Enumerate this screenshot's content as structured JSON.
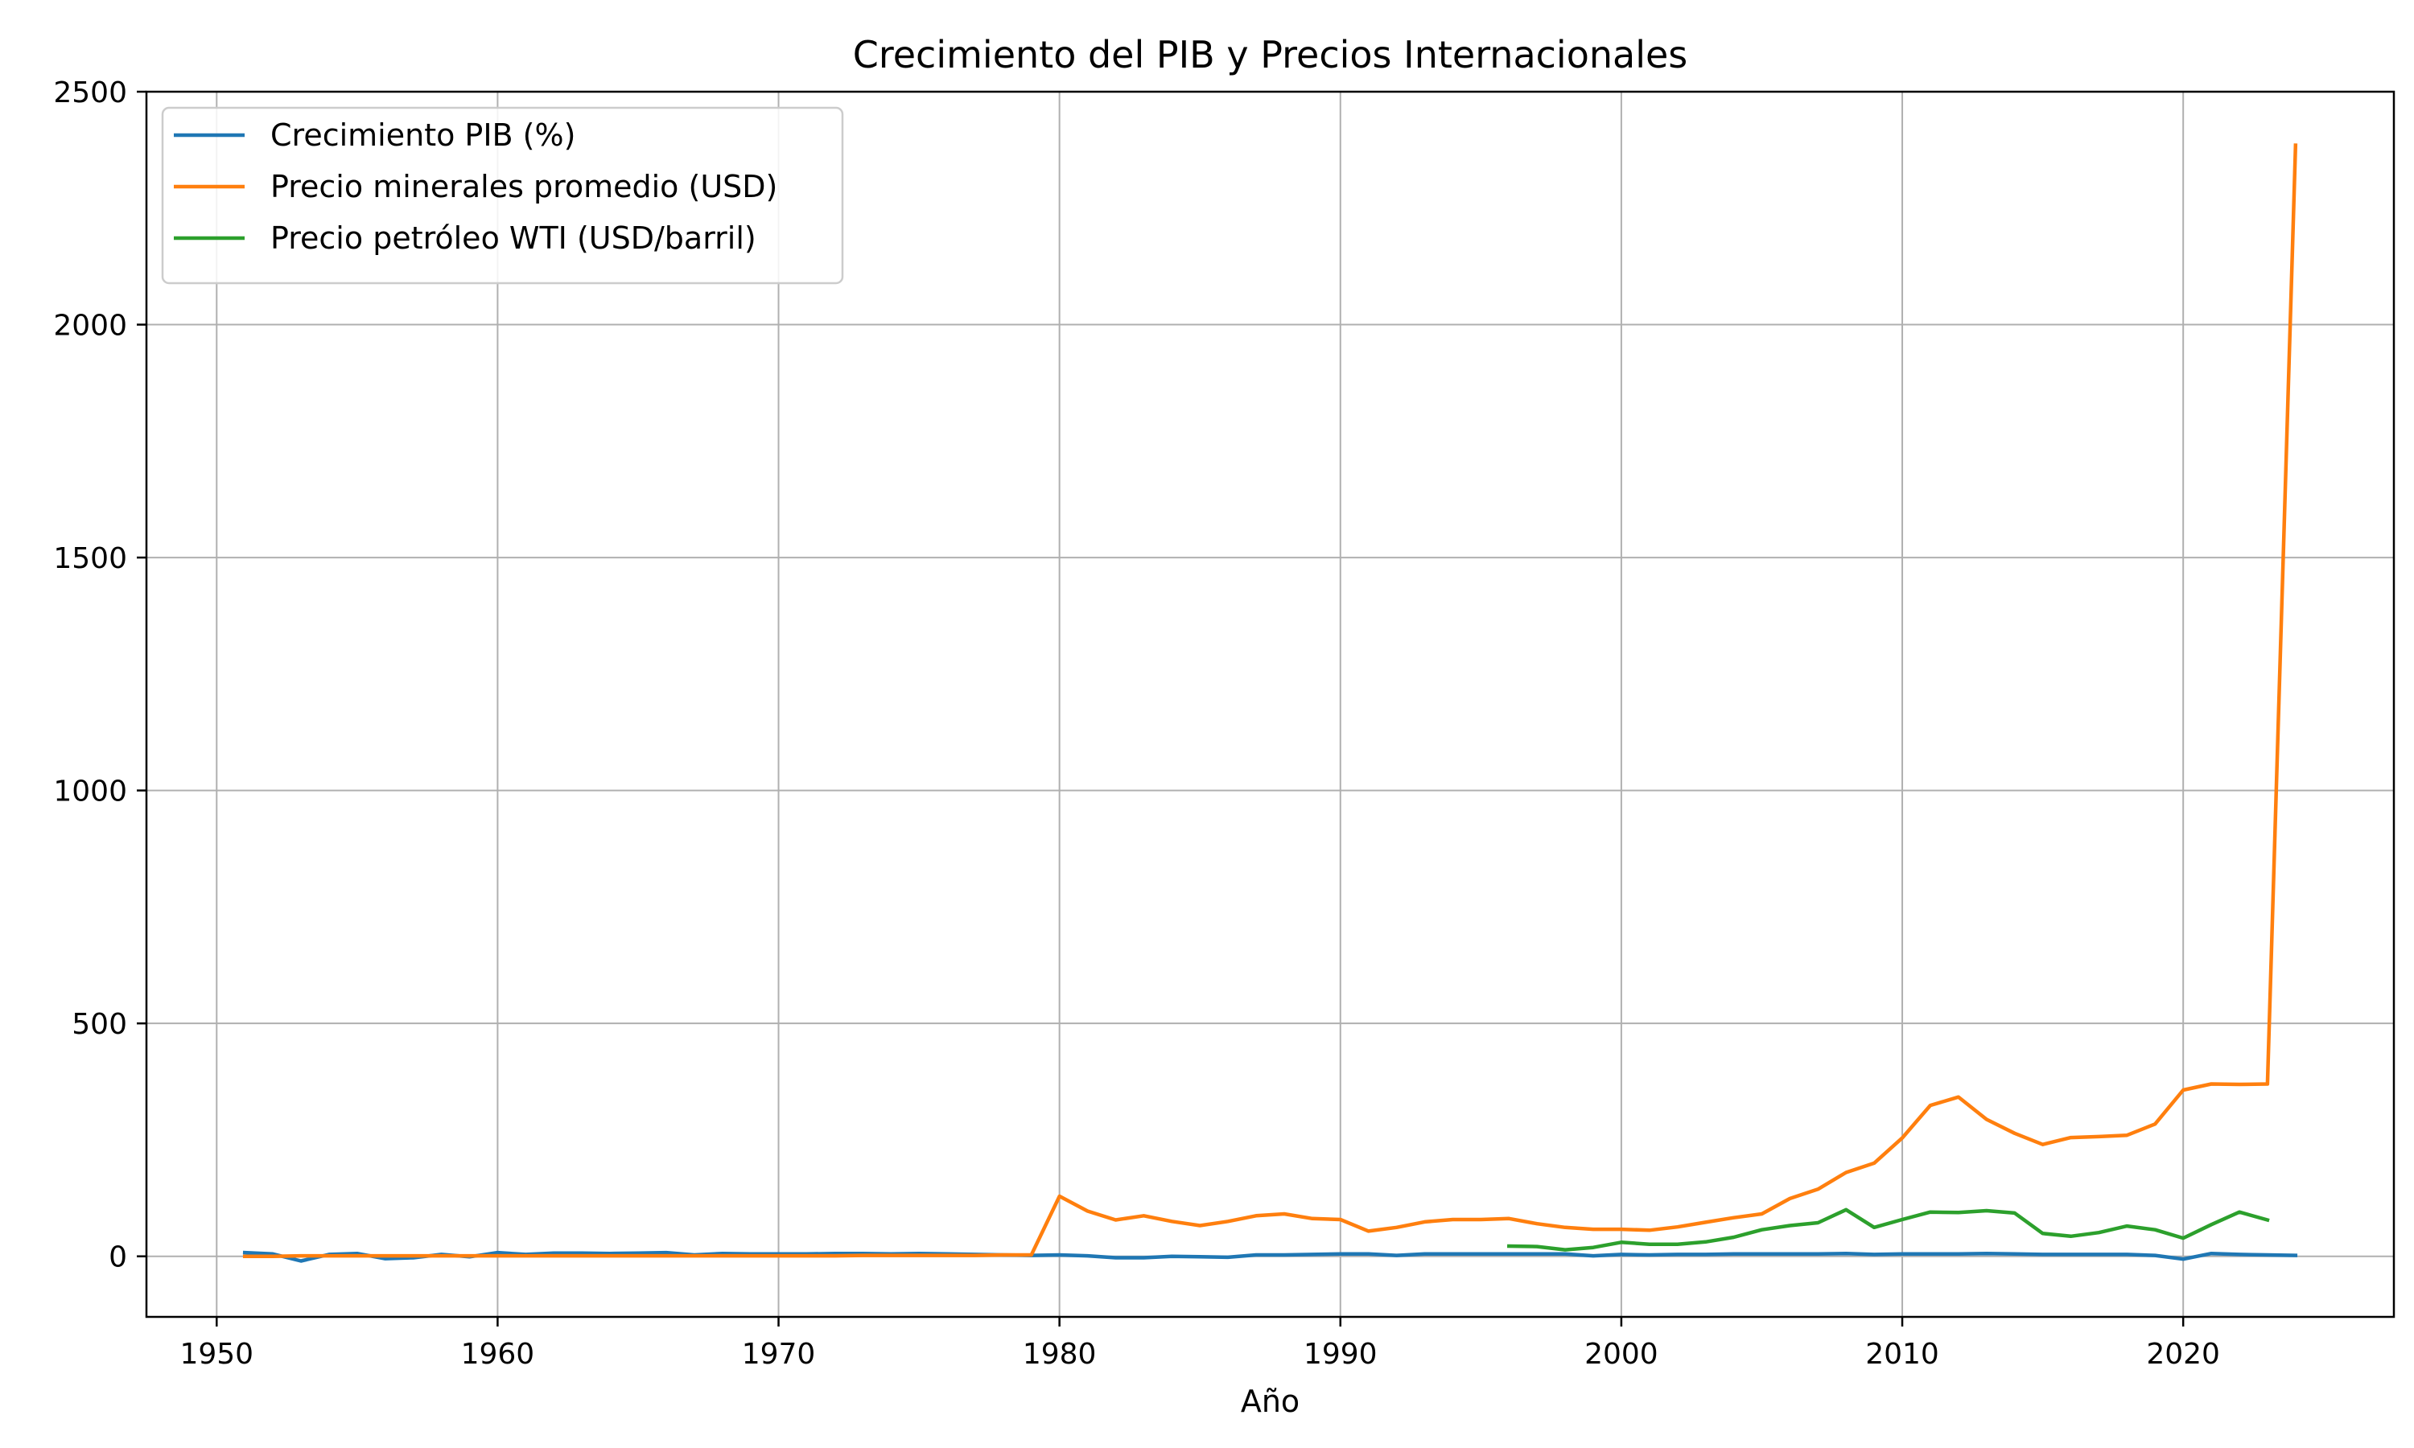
{
  "chart_data": {
    "type": "line",
    "title": "Crecimiento del PIB y Precios Internacionales",
    "xlabel": "Año",
    "ylabel": "",
    "xlim": [
      1947.5,
      2027.5
    ],
    "ylim": [
      -130,
      2500
    ],
    "xticks": [
      1950,
      1960,
      1970,
      1980,
      1990,
      2000,
      2010,
      2020
    ],
    "xtick_labels": [
      "1950",
      "1960",
      "1970",
      "1980",
      "1990",
      "2000",
      "2010",
      "2020"
    ],
    "yticks": [
      0,
      500,
      1000,
      1500,
      2000,
      2500
    ],
    "ytick_labels": [
      "0",
      "500",
      "1000",
      "1500",
      "2000",
      "2500"
    ],
    "grid": true,
    "legend_position": "top-left",
    "series": [
      {
        "name": "Crecimiento PIB (%)",
        "color": "#1f77b4",
        "x": [
          1951,
          1952,
          1953,
          1954,
          1955,
          1956,
          1957,
          1958,
          1959,
          1960,
          1961,
          1962,
          1963,
          1964,
          1965,
          1966,
          1967,
          1968,
          1969,
          1970,
          1971,
          1972,
          1973,
          1974,
          1975,
          1976,
          1977,
          1978,
          1979,
          1980,
          1981,
          1982,
          1983,
          1984,
          1985,
          1986,
          1987,
          1988,
          1989,
          1990,
          1991,
          1992,
          1993,
          1994,
          1995,
          1996,
          1997,
          1998,
          1999,
          2000,
          2001,
          2002,
          2003,
          2004,
          2005,
          2006,
          2007,
          2008,
          2009,
          2010,
          2011,
          2012,
          2013,
          2014,
          2015,
          2016,
          2017,
          2018,
          2019,
          2020,
          2021,
          2022,
          2023,
          2024
        ],
        "values": [
          8,
          5,
          -10,
          4,
          6,
          -5,
          -3,
          4,
          -1,
          8,
          4,
          7,
          7,
          6,
          7,
          8,
          3,
          6,
          5,
          5,
          5,
          6,
          6,
          5,
          6,
          5,
          4,
          3,
          2,
          3,
          1,
          -3,
          -3,
          0,
          -1,
          -2,
          3,
          3,
          4,
          5,
          5,
          2,
          5,
          5,
          5,
          5,
          5,
          5,
          1,
          4,
          3,
          4,
          4,
          5,
          5,
          5,
          5,
          6,
          4,
          5,
          5,
          5,
          6,
          5,
          4,
          4,
          4,
          4,
          2,
          -6,
          6,
          4,
          3,
          2
        ]
      },
      {
        "name": "Precio minerales promedio (USD)",
        "color": "#ff7f0e",
        "x": [
          1951,
          1952,
          1953,
          1954,
          1955,
          1956,
          1957,
          1958,
          1959,
          1960,
          1961,
          1962,
          1963,
          1964,
          1965,
          1966,
          1967,
          1968,
          1969,
          1970,
          1971,
          1972,
          1973,
          1974,
          1975,
          1976,
          1977,
          1978,
          1979,
          1980,
          1981,
          1982,
          1983,
          1984,
          1985,
          1986,
          1987,
          1988,
          1989,
          1990,
          1991,
          1992,
          1993,
          1994,
          1995,
          1996,
          1997,
          1998,
          1999,
          2000,
          2001,
          2002,
          2003,
          2004,
          2005,
          2006,
          2007,
          2008,
          2009,
          2010,
          2011,
          2012,
          2013,
          2014,
          2015,
          2016,
          2017,
          2018,
          2019,
          2020,
          2021,
          2022,
          2023,
          2024
        ],
        "values": [
          0,
          0,
          1,
          1,
          1,
          1,
          1,
          1,
          1,
          1,
          1,
          1,
          1,
          1,
          1,
          1,
          1,
          1,
          1,
          1,
          1,
          1,
          2,
          2,
          2,
          2,
          2,
          3,
          3,
          129,
          97,
          78,
          87,
          75,
          66,
          75,
          87,
          91,
          81,
          79,
          54,
          62,
          74,
          79,
          79,
          81,
          70,
          62,
          58,
          58,
          56,
          63,
          73,
          83,
          91,
          124,
          144,
          180,
          200,
          254,
          324,
          342,
          294,
          264,
          240,
          255,
          257,
          260,
          284,
          357,
          370,
          369,
          370,
          2385
        ]
      },
      {
        "name": "Precio petróleo WTI (USD/barril)",
        "color": "#2ca02c",
        "x": [
          1996,
          1997,
          1998,
          1999,
          2000,
          2001,
          2002,
          2003,
          2004,
          2005,
          2006,
          2007,
          2008,
          2009,
          2010,
          2011,
          2012,
          2013,
          2014,
          2015,
          2016,
          2017,
          2018,
          2019,
          2020,
          2021,
          2022,
          2023
        ],
        "values": [
          22,
          21,
          14,
          19,
          30,
          26,
          26,
          31,
          41,
          57,
          66,
          72,
          100,
          62,
          79,
          95,
          94,
          98,
          93,
          49,
          43,
          51,
          65,
          57,
          39,
          68,
          95,
          78
        ]
      }
    ]
  }
}
